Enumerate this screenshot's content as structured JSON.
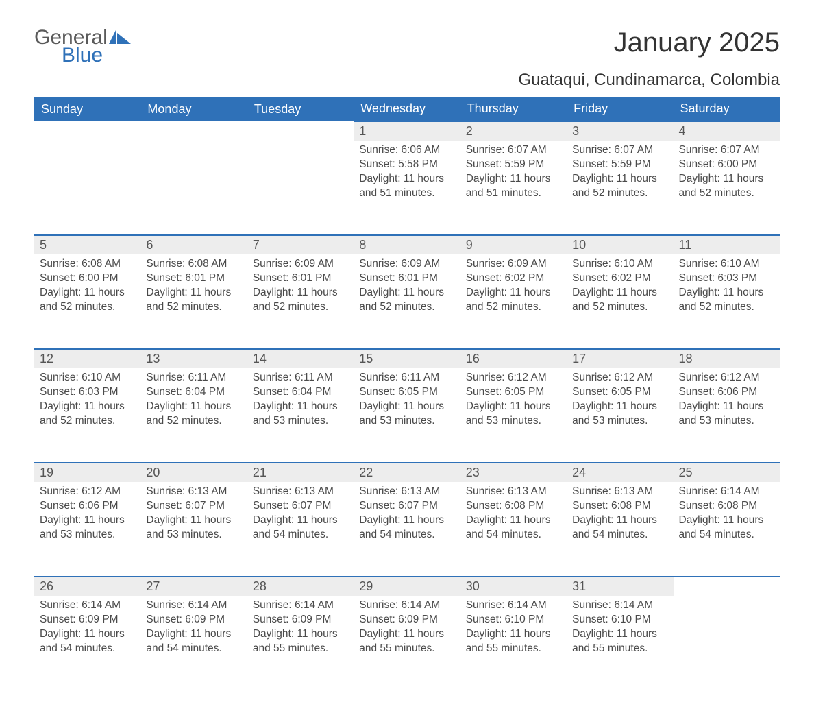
{
  "logo": {
    "word1": "General",
    "word2": "Blue"
  },
  "title": "January 2025",
  "location": "Guataqui, Cundinamarca, Colombia",
  "colors": {
    "header_bg": "#2f71b8",
    "header_text": "#ffffff",
    "daynum_bg": "#ededed",
    "row_border": "#2f71b8",
    "body_text": "#4a4a4a",
    "page_bg": "#ffffff"
  },
  "weekdays": [
    "Sunday",
    "Monday",
    "Tuesday",
    "Wednesday",
    "Thursday",
    "Friday",
    "Saturday"
  ],
  "weeks": [
    [
      null,
      null,
      null,
      {
        "n": 1,
        "sunrise": "6:06 AM",
        "sunset": "5:58 PM",
        "daylight": "11 hours and 51 minutes."
      },
      {
        "n": 2,
        "sunrise": "6:07 AM",
        "sunset": "5:59 PM",
        "daylight": "11 hours and 51 minutes."
      },
      {
        "n": 3,
        "sunrise": "6:07 AM",
        "sunset": "5:59 PM",
        "daylight": "11 hours and 52 minutes."
      },
      {
        "n": 4,
        "sunrise": "6:07 AM",
        "sunset": "6:00 PM",
        "daylight": "11 hours and 52 minutes."
      }
    ],
    [
      {
        "n": 5,
        "sunrise": "6:08 AM",
        "sunset": "6:00 PM",
        "daylight": "11 hours and 52 minutes."
      },
      {
        "n": 6,
        "sunrise": "6:08 AM",
        "sunset": "6:01 PM",
        "daylight": "11 hours and 52 minutes."
      },
      {
        "n": 7,
        "sunrise": "6:09 AM",
        "sunset": "6:01 PM",
        "daylight": "11 hours and 52 minutes."
      },
      {
        "n": 8,
        "sunrise": "6:09 AM",
        "sunset": "6:01 PM",
        "daylight": "11 hours and 52 minutes."
      },
      {
        "n": 9,
        "sunrise": "6:09 AM",
        "sunset": "6:02 PM",
        "daylight": "11 hours and 52 minutes."
      },
      {
        "n": 10,
        "sunrise": "6:10 AM",
        "sunset": "6:02 PM",
        "daylight": "11 hours and 52 minutes."
      },
      {
        "n": 11,
        "sunrise": "6:10 AM",
        "sunset": "6:03 PM",
        "daylight": "11 hours and 52 minutes."
      }
    ],
    [
      {
        "n": 12,
        "sunrise": "6:10 AM",
        "sunset": "6:03 PM",
        "daylight": "11 hours and 52 minutes."
      },
      {
        "n": 13,
        "sunrise": "6:11 AM",
        "sunset": "6:04 PM",
        "daylight": "11 hours and 52 minutes."
      },
      {
        "n": 14,
        "sunrise": "6:11 AM",
        "sunset": "6:04 PM",
        "daylight": "11 hours and 53 minutes."
      },
      {
        "n": 15,
        "sunrise": "6:11 AM",
        "sunset": "6:05 PM",
        "daylight": "11 hours and 53 minutes."
      },
      {
        "n": 16,
        "sunrise": "6:12 AM",
        "sunset": "6:05 PM",
        "daylight": "11 hours and 53 minutes."
      },
      {
        "n": 17,
        "sunrise": "6:12 AM",
        "sunset": "6:05 PM",
        "daylight": "11 hours and 53 minutes."
      },
      {
        "n": 18,
        "sunrise": "6:12 AM",
        "sunset": "6:06 PM",
        "daylight": "11 hours and 53 minutes."
      }
    ],
    [
      {
        "n": 19,
        "sunrise": "6:12 AM",
        "sunset": "6:06 PM",
        "daylight": "11 hours and 53 minutes."
      },
      {
        "n": 20,
        "sunrise": "6:13 AM",
        "sunset": "6:07 PM",
        "daylight": "11 hours and 53 minutes."
      },
      {
        "n": 21,
        "sunrise": "6:13 AM",
        "sunset": "6:07 PM",
        "daylight": "11 hours and 54 minutes."
      },
      {
        "n": 22,
        "sunrise": "6:13 AM",
        "sunset": "6:07 PM",
        "daylight": "11 hours and 54 minutes."
      },
      {
        "n": 23,
        "sunrise": "6:13 AM",
        "sunset": "6:08 PM",
        "daylight": "11 hours and 54 minutes."
      },
      {
        "n": 24,
        "sunrise": "6:13 AM",
        "sunset": "6:08 PM",
        "daylight": "11 hours and 54 minutes."
      },
      {
        "n": 25,
        "sunrise": "6:14 AM",
        "sunset": "6:08 PM",
        "daylight": "11 hours and 54 minutes."
      }
    ],
    [
      {
        "n": 26,
        "sunrise": "6:14 AM",
        "sunset": "6:09 PM",
        "daylight": "11 hours and 54 minutes."
      },
      {
        "n": 27,
        "sunrise": "6:14 AM",
        "sunset": "6:09 PM",
        "daylight": "11 hours and 54 minutes."
      },
      {
        "n": 28,
        "sunrise": "6:14 AM",
        "sunset": "6:09 PM",
        "daylight": "11 hours and 55 minutes."
      },
      {
        "n": 29,
        "sunrise": "6:14 AM",
        "sunset": "6:09 PM",
        "daylight": "11 hours and 55 minutes."
      },
      {
        "n": 30,
        "sunrise": "6:14 AM",
        "sunset": "6:10 PM",
        "daylight": "11 hours and 55 minutes."
      },
      {
        "n": 31,
        "sunrise": "6:14 AM",
        "sunset": "6:10 PM",
        "daylight": "11 hours and 55 minutes."
      },
      null
    ]
  ],
  "labels": {
    "sunrise": "Sunrise:",
    "sunset": "Sunset:",
    "daylight": "Daylight:"
  }
}
